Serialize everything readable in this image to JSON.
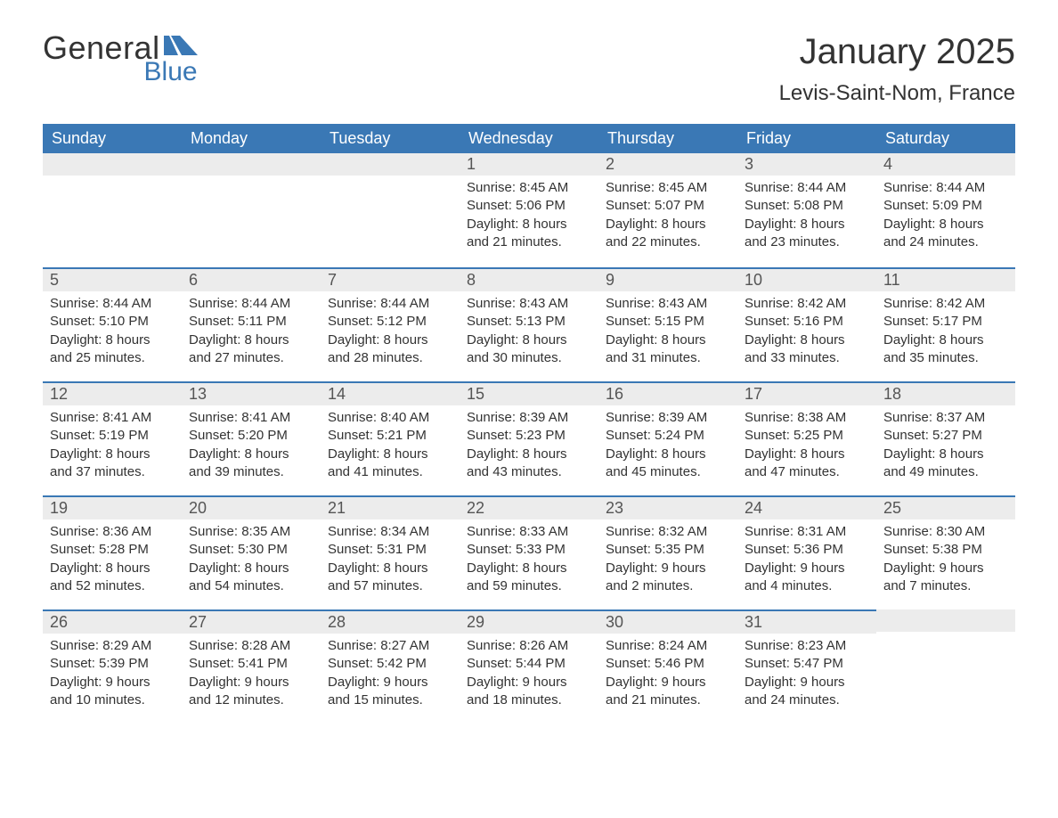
{
  "logo": {
    "line1": "General",
    "line2": "Blue"
  },
  "title": "January 2025",
  "location": "Levis-Saint-Nom, France",
  "colors": {
    "header_bg": "#3a78b5",
    "header_text": "#ffffff",
    "daynum_bg": "#ececec",
    "rule": "#3a78b5",
    "body_text": "#333333",
    "logo_blue": "#3a78b5"
  },
  "weekdays": [
    "Sunday",
    "Monday",
    "Tuesday",
    "Wednesday",
    "Thursday",
    "Friday",
    "Saturday"
  ],
  "firstWeekdayIndex": 3,
  "daysInMonth": 31,
  "days": {
    "1": {
      "sunrise": "8:45 AM",
      "sunset": "5:06 PM",
      "daylight_h": 8,
      "daylight_m": 21
    },
    "2": {
      "sunrise": "8:45 AM",
      "sunset": "5:07 PM",
      "daylight_h": 8,
      "daylight_m": 22
    },
    "3": {
      "sunrise": "8:44 AM",
      "sunset": "5:08 PM",
      "daylight_h": 8,
      "daylight_m": 23
    },
    "4": {
      "sunrise": "8:44 AM",
      "sunset": "5:09 PM",
      "daylight_h": 8,
      "daylight_m": 24
    },
    "5": {
      "sunrise": "8:44 AM",
      "sunset": "5:10 PM",
      "daylight_h": 8,
      "daylight_m": 25
    },
    "6": {
      "sunrise": "8:44 AM",
      "sunset": "5:11 PM",
      "daylight_h": 8,
      "daylight_m": 27
    },
    "7": {
      "sunrise": "8:44 AM",
      "sunset": "5:12 PM",
      "daylight_h": 8,
      "daylight_m": 28
    },
    "8": {
      "sunrise": "8:43 AM",
      "sunset": "5:13 PM",
      "daylight_h": 8,
      "daylight_m": 30
    },
    "9": {
      "sunrise": "8:43 AM",
      "sunset": "5:15 PM",
      "daylight_h": 8,
      "daylight_m": 31
    },
    "10": {
      "sunrise": "8:42 AM",
      "sunset": "5:16 PM",
      "daylight_h": 8,
      "daylight_m": 33
    },
    "11": {
      "sunrise": "8:42 AM",
      "sunset": "5:17 PM",
      "daylight_h": 8,
      "daylight_m": 35
    },
    "12": {
      "sunrise": "8:41 AM",
      "sunset": "5:19 PM",
      "daylight_h": 8,
      "daylight_m": 37
    },
    "13": {
      "sunrise": "8:41 AM",
      "sunset": "5:20 PM",
      "daylight_h": 8,
      "daylight_m": 39
    },
    "14": {
      "sunrise": "8:40 AM",
      "sunset": "5:21 PM",
      "daylight_h": 8,
      "daylight_m": 41
    },
    "15": {
      "sunrise": "8:39 AM",
      "sunset": "5:23 PM",
      "daylight_h": 8,
      "daylight_m": 43
    },
    "16": {
      "sunrise": "8:39 AM",
      "sunset": "5:24 PM",
      "daylight_h": 8,
      "daylight_m": 45
    },
    "17": {
      "sunrise": "8:38 AM",
      "sunset": "5:25 PM",
      "daylight_h": 8,
      "daylight_m": 47
    },
    "18": {
      "sunrise": "8:37 AM",
      "sunset": "5:27 PM",
      "daylight_h": 8,
      "daylight_m": 49
    },
    "19": {
      "sunrise": "8:36 AM",
      "sunset": "5:28 PM",
      "daylight_h": 8,
      "daylight_m": 52
    },
    "20": {
      "sunrise": "8:35 AM",
      "sunset": "5:30 PM",
      "daylight_h": 8,
      "daylight_m": 54
    },
    "21": {
      "sunrise": "8:34 AM",
      "sunset": "5:31 PM",
      "daylight_h": 8,
      "daylight_m": 57
    },
    "22": {
      "sunrise": "8:33 AM",
      "sunset": "5:33 PM",
      "daylight_h": 8,
      "daylight_m": 59
    },
    "23": {
      "sunrise": "8:32 AM",
      "sunset": "5:35 PM",
      "daylight_h": 9,
      "daylight_m": 2
    },
    "24": {
      "sunrise": "8:31 AM",
      "sunset": "5:36 PM",
      "daylight_h": 9,
      "daylight_m": 4
    },
    "25": {
      "sunrise": "8:30 AM",
      "sunset": "5:38 PM",
      "daylight_h": 9,
      "daylight_m": 7
    },
    "26": {
      "sunrise": "8:29 AM",
      "sunset": "5:39 PM",
      "daylight_h": 9,
      "daylight_m": 10
    },
    "27": {
      "sunrise": "8:28 AM",
      "sunset": "5:41 PM",
      "daylight_h": 9,
      "daylight_m": 12
    },
    "28": {
      "sunrise": "8:27 AM",
      "sunset": "5:42 PM",
      "daylight_h": 9,
      "daylight_m": 15
    },
    "29": {
      "sunrise": "8:26 AM",
      "sunset": "5:44 PM",
      "daylight_h": 9,
      "daylight_m": 18
    },
    "30": {
      "sunrise": "8:24 AM",
      "sunset": "5:46 PM",
      "daylight_h": 9,
      "daylight_m": 21
    },
    "31": {
      "sunrise": "8:23 AM",
      "sunset": "5:47 PM",
      "daylight_h": 9,
      "daylight_m": 24
    }
  },
  "labels": {
    "sunrise": "Sunrise",
    "sunset": "Sunset",
    "daylight": "Daylight",
    "hours": "hours",
    "and": "and",
    "minutes": "minutes"
  }
}
